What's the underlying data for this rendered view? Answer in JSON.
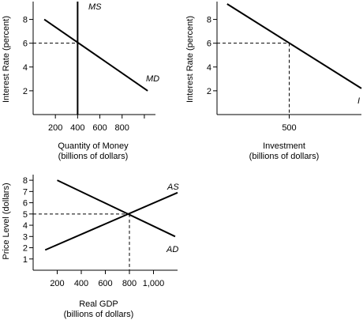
{
  "chart_data": [
    {
      "id": "money",
      "type": "line",
      "xlabel": "Quantity of Money",
      "xlabel2": "(billions of dollars)",
      "ylabel": "Interest Rate (percent)",
      "xlim": [
        0,
        1100
      ],
      "ylim": [
        0,
        9.5
      ],
      "xticks": [
        200,
        400,
        600,
        800,
        1000
      ],
      "xtick_labels": [
        "200",
        "400",
        "600",
        "800",
        ""
      ],
      "yticks": [
        2,
        4,
        6,
        8
      ],
      "ytick_labels": [
        "2",
        "4",
        "6",
        "8"
      ],
      "series": [
        {
          "name": "MS",
          "x": [
            400,
            400
          ],
          "y": [
            0,
            9.5
          ]
        },
        {
          "name": "MD",
          "x": [
            100,
            1030
          ],
          "y": [
            8,
            2
          ]
        }
      ],
      "guides": [
        {
          "x": 400,
          "y": 6
        }
      ]
    },
    {
      "id": "investment",
      "type": "line",
      "xlabel": "Investment",
      "xlabel2": "(billions of dollars)",
      "ylabel": "Interest Rate (percent)",
      "xlim": [
        0,
        1000
      ],
      "ylim": [
        0,
        9.5
      ],
      "xticks": [
        500
      ],
      "xtick_labels": [
        "500"
      ],
      "yticks": [
        2,
        4,
        6,
        8
      ],
      "ytick_labels": [
        "2",
        "4",
        "6",
        "8"
      ],
      "series": [
        {
          "name": "I",
          "x": [
            70,
            1000
          ],
          "y": [
            9.3,
            2.2
          ]
        }
      ],
      "guides": [
        {
          "x": 500,
          "y": 6
        }
      ]
    },
    {
      "id": "adas",
      "type": "line",
      "xlabel": "Real GDP",
      "xlabel2": "(billions of dollars)",
      "ylabel": "Price Level (dollars)",
      "xlim": [
        0,
        1200
      ],
      "ylim": [
        0,
        8.5
      ],
      "xticks": [
        200,
        400,
        600,
        800,
        1000
      ],
      "xtick_labels": [
        "200",
        "400",
        "600",
        "800",
        "1,000"
      ],
      "yticks": [
        1,
        2,
        3,
        4,
        5,
        6,
        7,
        8
      ],
      "ytick_labels": [
        "1",
        "2",
        "3",
        "4",
        "5",
        "6",
        "7",
        "8"
      ],
      "series": [
        {
          "name": "AS",
          "x": [
            100,
            1200
          ],
          "y": [
            1.8,
            6.9
          ]
        },
        {
          "name": "AD",
          "x": [
            200,
            1180
          ],
          "y": [
            8,
            3
          ]
        }
      ],
      "guides": [
        {
          "x": 800,
          "y": 5
        }
      ]
    }
  ]
}
